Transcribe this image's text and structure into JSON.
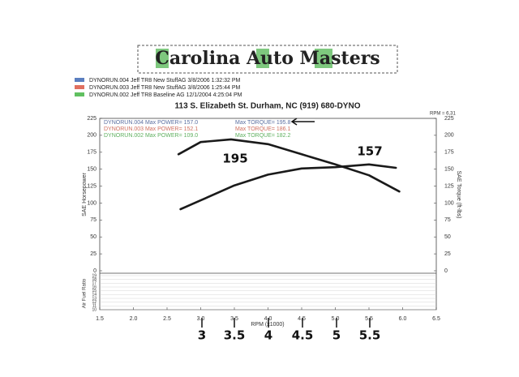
{
  "chart_data": {
    "type": "line",
    "logo": "Carolina Auto Masters",
    "subtitle": "113 S. Elizabeth St. Durham, NC (919) 680-DYNO",
    "rpm_readout": "RPM = 6,31",
    "legend": [
      {
        "text": "DYNORUN.004  Jeff TR8 New StuffAG  3/8/2006 1:32:32 PM",
        "color": "#5b7fc0"
      },
      {
        "text": "DYNORUN.003  Jeff TR8 New StuffAG  3/8/2006 1:25:44 PM",
        "color": "#e07060"
      },
      {
        "text": "DYNORUN.002  Jeff TR8 Baseline  AG  12/1/2004 4:25:04 PM",
        "color": "#60c060"
      }
    ],
    "info": [
      {
        "power": "DYNORUN.004  Max POWER= 157.0",
        "torque": "Max TORQUE= 195.8",
        "color": "#5b6fa0"
      },
      {
        "power": "DYNORUN.003  Max POWER= 152.1",
        "torque": "Max TORQUE= 186.1",
        "color": "#d07060"
      },
      {
        "power": "DYNORUN.002  Max POWER= 109.0",
        "torque": "Max TORQUE= 182.2",
        "color": "#60b060"
      }
    ],
    "y_label": "SAE Horsepower",
    "y2_label": "SAE Torque (ft-lbs)",
    "x_label": "RPM (x1000)",
    "afr_label": "Air Fuel Ratio",
    "xlim": [
      1.5,
      6.5
    ],
    "xticks": [
      1.5,
      {
        "value": 2,
        "label": "2.0"
      },
      2.5,
      {
        "value": 3,
        "label": "3.0"
      },
      3.5,
      {
        "value": 4,
        "label": "4.0"
      },
      4.5,
      {
        "value": 5,
        "label": "5.0"
      },
      5.5,
      {
        "value": 6,
        "label": "6.0"
      },
      6.5
    ],
    "ylim": [
      0,
      225
    ],
    "yticks": [
      0,
      25,
      50,
      75,
      100,
      125,
      150,
      175,
      200,
      225
    ],
    "y2lim": [
      0,
      225
    ],
    "y2ticks": [
      0,
      25,
      50,
      75,
      100,
      125,
      150,
      175,
      200,
      225
    ],
    "afr_lim": [
      10,
      19
    ],
    "afr_ticks": [
      10,
      11,
      12,
      13,
      14,
      15,
      16,
      17,
      18,
      19
    ],
    "series": [
      {
        "color": "#1a1a1a",
        "axis": "y2",
        "x": [
          2.67,
          3.0,
          3.45,
          4.0,
          4.5,
          5.0,
          5.5,
          5.95
        ],
        "values": [
          172,
          190,
          194,
          187,
          172,
          157,
          141,
          117
        ]
      },
      {
        "color": "#1a1a1a",
        "x": [
          2.7,
          3.0,
          3.5,
          4.0,
          4.5,
          5.0,
          5.5,
          5.9
        ],
        "values": [
          91,
          104,
          126,
          142,
          151,
          153,
          157,
          152
        ]
      }
    ],
    "annotations": [
      "195",
      "157"
    ],
    "hand_rpm_labels": [
      "3",
      "3.5",
      "4",
      "4.5",
      "5",
      "5.5"
    ]
  }
}
